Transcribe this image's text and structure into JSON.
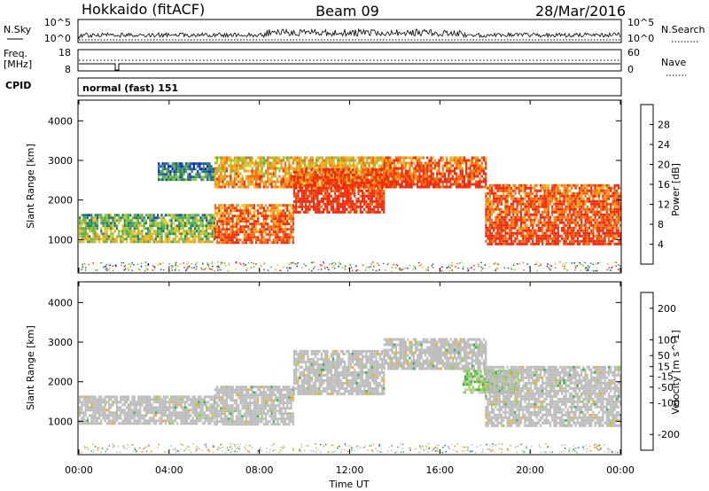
{
  "header": {
    "left": "Hokkaido (fitACF)",
    "center": "Beam 09",
    "right": "28/Mar/2016"
  },
  "strips": {
    "nsky": {
      "label": "N.Sky",
      "ticks": [
        "10^5",
        "10^0"
      ]
    },
    "nsearch": {
      "label": "N.Search"
    },
    "freq": {
      "label_line1": "Freq.",
      "label_line2": "[MHz]",
      "ticks": [
        "18",
        "8"
      ]
    },
    "nave": {
      "label": "Nave",
      "ticks": [
        "60",
        "0"
      ]
    },
    "cpid": {
      "label": "CPID",
      "value": "normal (fast) 151"
    }
  },
  "x_axis": {
    "label": "Time UT",
    "ticks": [
      "00:00",
      "04:00",
      "08:00",
      "12:00",
      "16:00",
      "20:00",
      "00:00"
    ]
  },
  "colors": {
    "power": [
      "#0a14e6",
      "#1e50aa",
      "#2c7a5a",
      "#4aaa55",
      "#8cc43c",
      "#f0c020",
      "#f59a1a",
      "#f26a12",
      "#ee2a0c"
    ],
    "velocity": [
      "#e61a1a",
      "#ff7a00",
      "#f5b000",
      "#c8c8c8",
      "#c8c8c8",
      "#8ed040",
      "#3cb04a",
      "#1e7a66",
      "#1e3aa0"
    ],
    "gray": "#bcbcbc"
  },
  "chart_data": [
    {
      "type": "heatmap",
      "name_panel": "power",
      "ylabel": "Slant Range [km]",
      "ylim": [
        180,
        4500
      ],
      "y_ticks": [
        1000,
        2000,
        3000,
        4000
      ],
      "xlim_hours": [
        0,
        24
      ],
      "colorbar": {
        "label": "Power [dB]",
        "ticks": [
          4,
          8,
          12,
          16,
          20,
          24,
          28
        ],
        "range": [
          0,
          32
        ]
      },
      "echo_bands_hours_vs_range_km": [
        {
          "t": [
            0,
            6
          ],
          "range_low": 950,
          "range_high": 1650,
          "power_db": 12
        },
        {
          "t": [
            6,
            9.5
          ],
          "range_low": 900,
          "range_high": 1900,
          "power_db": 24
        },
        {
          "t": [
            6,
            14
          ],
          "range_low": 2300,
          "range_high": 3100,
          "power_db": 20
        },
        {
          "t": [
            9.5,
            13.5
          ],
          "range_low": 1700,
          "range_high": 2800,
          "power_db": 28
        },
        {
          "t": [
            13.5,
            18
          ],
          "range_low": 2300,
          "range_high": 3100,
          "power_db": 26
        },
        {
          "t": [
            18,
            24
          ],
          "range_low": 900,
          "range_high": 2400,
          "power_db": 26
        },
        {
          "t": [
            3.5,
            6
          ],
          "range_low": 2500,
          "range_high": 2950,
          "power_db": 6
        }
      ]
    },
    {
      "type": "heatmap",
      "name_panel": "velocity",
      "ylabel": "Slant Range [km]",
      "ylim": [
        180,
        4500
      ],
      "y_ticks": [
        1000,
        2000,
        3000,
        4000
      ],
      "xlim_hours": [
        0,
        24
      ],
      "colorbar": {
        "label": "Velocity [m s^-1]",
        "ticks": [
          -200,
          -100,
          -50,
          -15,
          15,
          50,
          100,
          200
        ],
        "range": [
          -250,
          250
        ]
      },
      "echo_bands_hours_vs_range_km": [
        {
          "t": [
            0,
            6
          ],
          "range_low": 950,
          "range_high": 1650,
          "velocity": 0
        },
        {
          "t": [
            6,
            9.5
          ],
          "range_low": 900,
          "range_high": 1900,
          "velocity": 0
        },
        {
          "t": [
            9.5,
            13.5
          ],
          "range_low": 1700,
          "range_high": 2800,
          "velocity": 0
        },
        {
          "t": [
            13.5,
            18
          ],
          "range_low": 2300,
          "range_high": 3100,
          "velocity": 0
        },
        {
          "t": [
            17,
            19.5
          ],
          "range_low": 1700,
          "range_high": 2300,
          "velocity": 35
        },
        {
          "t": [
            18,
            24
          ],
          "range_low": 900,
          "range_high": 2400,
          "velocity": 0
        }
      ]
    }
  ]
}
